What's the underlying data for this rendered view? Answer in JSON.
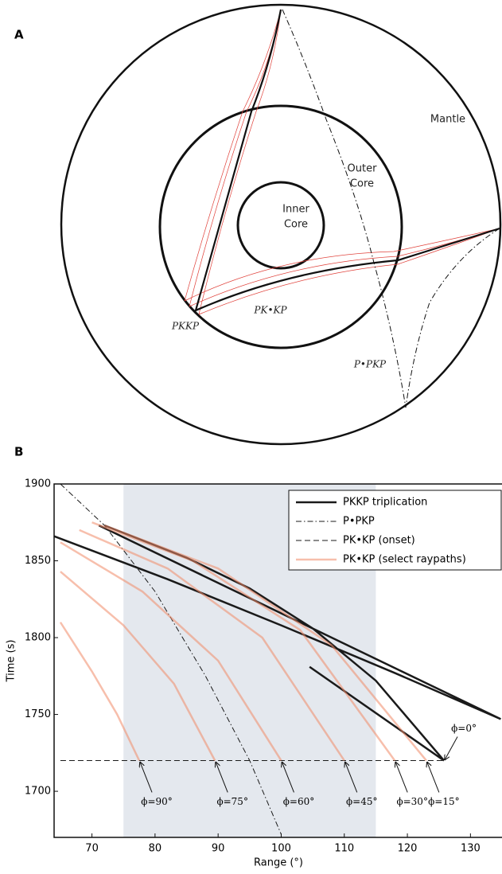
{
  "panel_labels": [
    "A",
    "B"
  ],
  "diagram": {
    "mantle": "Mantle",
    "outer_core": [
      "Outer",
      "Core"
    ],
    "inner_core": [
      "Inner",
      "Core"
    ],
    "ray_labels": [
      "PKKP",
      "PK•KP",
      "P•PKP"
    ]
  },
  "chart_data": {
    "type": "line",
    "xlabel": "Range (°)",
    "ylabel": "Time (s)",
    "xlim": [
      64,
      135
    ],
    "ylim": [
      1670,
      1900
    ],
    "xticks": [
      70,
      80,
      90,
      100,
      110,
      120,
      130
    ],
    "yticks": [
      1700,
      1750,
      1800,
      1850,
      1900
    ],
    "shade": [
      75,
      115
    ],
    "shade_color": "#e4e8ee",
    "legend": "upper right",
    "series": [
      {
        "name": "PKKP triplication",
        "color": "#1a1a1a",
        "style": "solid",
        "width": 2.5,
        "x": [
          71.1,
          134.8,
          null,
          64,
          82,
          100,
          118,
          134.8,
          null,
          72,
          85,
          95,
          105,
          115,
          125.8,
          null,
          104.5,
          125.8
        ],
        "values": [
          1873,
          1747,
          null,
          1866,
          1838,
          1808,
          1777,
          1747,
          null,
          1873,
          1852,
          1832,
          1806,
          1772,
          1720,
          null,
          1781,
          1720
        ]
      },
      {
        "name": "P•PKP",
        "color": "#1a1a1a",
        "style": "dashdot",
        "width": 1,
        "x": [
          65,
          72,
          80,
          88,
          95,
          100
        ],
        "values": [
          1900,
          1873,
          1830,
          1775,
          1720,
          1672
        ]
      },
      {
        "name": "PK•KP (onset)",
        "color": "#1a1a1a",
        "style": "dashed",
        "width": 1,
        "x": [
          65,
          125.8
        ],
        "values": [
          1720,
          1720
        ]
      },
      {
        "name": "PK•KP (select raypaths)",
        "color": "#f08a68",
        "style": "solid",
        "width": 2.5,
        "x": [
          65,
          70,
          74,
          77.5,
          null,
          65,
          75,
          83,
          89.5,
          null,
          65,
          78,
          90,
          100,
          null,
          68,
          82,
          97,
          110,
          null,
          70,
          86,
          103,
          118,
          null,
          72,
          90,
          108,
          123
        ],
        "values": [
          1810,
          1778,
          1750,
          1720,
          null,
          1843,
          1808,
          1770,
          1720,
          null,
          1862,
          1830,
          1785,
          1720,
          null,
          1870,
          1845,
          1800,
          1720,
          null,
          1875,
          1850,
          1805,
          1720,
          null,
          1873,
          1845,
          1795,
          1720
        ]
      }
    ],
    "annotations": [
      {
        "label": "ϕ=0°",
        "x": 125.8,
        "y": 1720
      },
      {
        "label": "ϕ=15°",
        "x": 123,
        "y": 1720
      },
      {
        "label": "ϕ=30°",
        "x": 118,
        "y": 1720
      },
      {
        "label": "ϕ=45°",
        "x": 110,
        "y": 1720
      },
      {
        "label": "ϕ=60°",
        "x": 100,
        "y": 1720
      },
      {
        "label": "ϕ=75°",
        "x": 89.5,
        "y": 1720
      },
      {
        "label": "ϕ=90°",
        "x": 77.5,
        "y": 1720
      }
    ]
  }
}
